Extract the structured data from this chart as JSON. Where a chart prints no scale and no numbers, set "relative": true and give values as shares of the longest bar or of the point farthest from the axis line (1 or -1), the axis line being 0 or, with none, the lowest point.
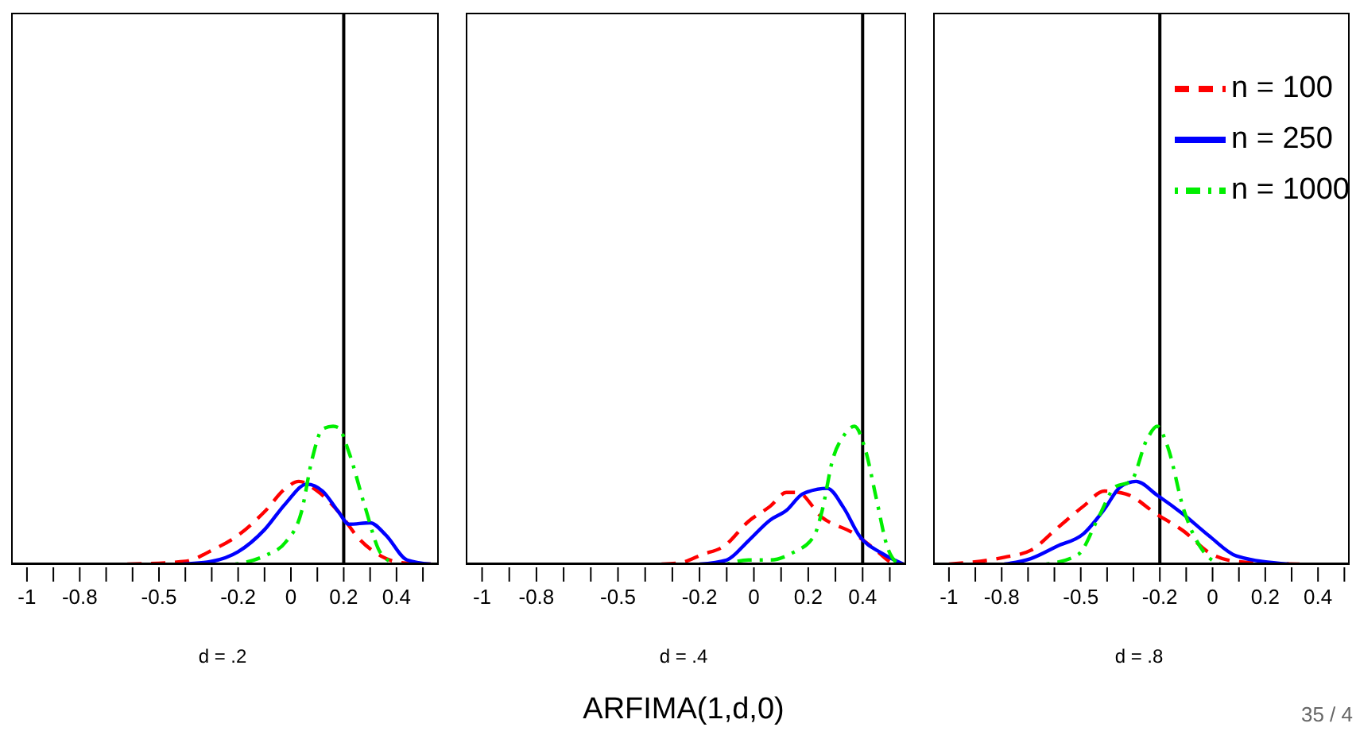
{
  "chart_data": [
    {
      "type": "line",
      "relative": true,
      "xlabel": "d = .2",
      "xlim": [
        -1.06,
        0.56
      ],
      "xticks": [
        -1,
        {
          "value": -0.9,
          "label": null
        },
        -0.8,
        {
          "value": -0.7,
          "label": null
        },
        {
          "value": -0.6,
          "label": null
        },
        -0.5,
        {
          "value": -0.4,
          "label": null
        },
        {
          "value": -0.3,
          "label": null
        },
        -0.2,
        {
          "value": -0.1,
          "label": null
        },
        0,
        {
          "value": 0.1,
          "label": null
        },
        0.2,
        {
          "value": 0.3,
          "label": null
        },
        0.4,
        {
          "value": 0.5,
          "label": null
        }
      ],
      "ref_lines": [
        {
          "axis": "x",
          "value": 0.2,
          "color": "#000000"
        }
      ],
      "series": [
        {
          "color": "#ff0000",
          "line_style": "dashed",
          "x": [
            -0.62,
            -0.4,
            -0.3,
            -0.2,
            -0.1,
            -0.02,
            0.03,
            0.1,
            0.18,
            0.26,
            0.34,
            0.42,
            0.53
          ],
          "values": [
            0,
            0.02,
            0.1,
            0.21,
            0.38,
            0.55,
            0.6,
            0.53,
            0.38,
            0.18,
            0.06,
            0.01,
            0
          ]
        },
        {
          "color": "#0000ff",
          "line_style": "solid",
          "x": [
            -0.41,
            -0.3,
            -0.2,
            -0.1,
            -0.02,
            0.06,
            0.12,
            0.18,
            0.22,
            0.3,
            0.36,
            0.44,
            0.53
          ],
          "values": [
            0,
            0.02,
            0.09,
            0.25,
            0.44,
            0.58,
            0.53,
            0.38,
            0.29,
            0.3,
            0.21,
            0.03,
            0
          ]
        },
        {
          "color": "#00ee00",
          "line_style": "dotted",
          "x": [
            -0.21,
            -0.1,
            -0.02,
            0.04,
            0.08,
            0.12,
            0.16,
            0.18,
            0.22,
            0.28,
            0.34,
            0.4
          ],
          "values": [
            0,
            0.06,
            0.16,
            0.38,
            0.76,
            0.98,
            1,
            0.99,
            0.81,
            0.42,
            0.08,
            0
          ]
        }
      ]
    },
    {
      "type": "line",
      "relative": true,
      "xlabel": "d = .4",
      "xlim": [
        -1.06,
        0.56
      ],
      "xticks": [
        -1,
        {
          "value": -0.9,
          "label": null
        },
        -0.8,
        {
          "value": -0.7,
          "label": null
        },
        {
          "value": -0.6,
          "label": null
        },
        -0.5,
        {
          "value": -0.4,
          "label": null
        },
        {
          "value": -0.3,
          "label": null
        },
        -0.2,
        {
          "value": -0.1,
          "label": null
        },
        0,
        {
          "value": 0.1,
          "label": null
        },
        0.2,
        {
          "value": 0.3,
          "label": null
        },
        0.4,
        {
          "value": 0.5,
          "label": null
        }
      ],
      "ref_lines": [
        {
          "axis": "x",
          "value": 0.4,
          "color": "#000000"
        }
      ],
      "annotations": [
        "ARFIMA(1,d,0)"
      ],
      "series": [
        {
          "color": "#ff0000",
          "line_style": "dashed",
          "x": [
            -0.34,
            -0.27,
            -0.19,
            -0.11,
            -0.02,
            0.06,
            0.12,
            0.16,
            0.25,
            0.37,
            0.45,
            0.51,
            0.55
          ],
          "values": [
            0,
            0.01,
            0.07,
            0.13,
            0.31,
            0.42,
            0.52,
            0.52,
            0.34,
            0.22,
            0.1,
            0.01,
            0
          ]
        },
        {
          "color": "#0000ff",
          "line_style": "solid",
          "x": [
            -0.2,
            -0.1,
            -0.02,
            0.06,
            0.12,
            0.18,
            0.27,
            0.33,
            0.39,
            0.47,
            0.55
          ],
          "values": [
            0,
            0.03,
            0.17,
            0.32,
            0.39,
            0.51,
            0.55,
            0.41,
            0.2,
            0.08,
            0
          ]
        },
        {
          "color": "#00ee00",
          "line_style": "dotted",
          "x": [
            -0.1,
            -0.02,
            0.06,
            0.14,
            0.22,
            0.25,
            0.29,
            0.33,
            0.37,
            0.41,
            0.45,
            0.49,
            0.53
          ],
          "values": [
            0,
            0.03,
            0.03,
            0.08,
            0.2,
            0.38,
            0.76,
            0.93,
            1,
            0.83,
            0.48,
            0.13,
            0
          ]
        }
      ]
    },
    {
      "type": "line",
      "relative": true,
      "xlabel": "d = .8",
      "xlim": [
        -1.06,
        0.52
      ],
      "legend": "top right",
      "xticks": [
        -1,
        {
          "value": -0.9,
          "label": null
        },
        -0.8,
        {
          "value": -0.7,
          "label": null
        },
        {
          "value": -0.6,
          "label": null
        },
        -0.5,
        {
          "value": -0.4,
          "label": null
        },
        {
          "value": -0.3,
          "label": null
        },
        -0.2,
        {
          "value": -0.1,
          "label": null
        },
        0,
        {
          "value": 0.1,
          "label": null
        },
        0.2,
        {
          "value": 0.3,
          "label": null
        },
        0.4,
        {
          "value": 0.5,
          "label": null
        }
      ],
      "ref_lines": [
        {
          "axis": "x",
          "value": -0.2,
          "color": "#000000"
        }
      ],
      "annotations": [
        "35 / 4"
      ],
      "series": [
        {
          "name": "n = 100",
          "color": "#ff0000",
          "line_style": "dashed",
          "x": [
            -1,
            -0.79,
            -0.69,
            -0.59,
            -0.49,
            -0.41,
            -0.33,
            -0.21,
            -0.11,
            -0.01,
            0.09,
            0.33
          ],
          "values": [
            0,
            0.05,
            0.1,
            0.26,
            0.42,
            0.53,
            0.51,
            0.36,
            0.24,
            0.08,
            0.02,
            0
          ]
        },
        {
          "name": "n = 250",
          "color": "#0000ff",
          "line_style": "solid",
          "x": [
            -0.79,
            -0.69,
            -0.59,
            -0.49,
            -0.41,
            -0.35,
            -0.29,
            -0.21,
            -0.11,
            -0.01,
            0.09,
            0.29
          ],
          "values": [
            0,
            0.04,
            0.13,
            0.22,
            0.4,
            0.56,
            0.6,
            0.5,
            0.36,
            0.2,
            0.06,
            0
          ]
        },
        {
          "name": "n = 1000",
          "color": "#00ee00",
          "line_style": "dotted",
          "x": [
            -0.63,
            -0.51,
            -0.43,
            -0.37,
            -0.31,
            -0.25,
            -0.21,
            -0.17,
            -0.11,
            -0.03,
            0.03
          ],
          "values": [
            0,
            0.07,
            0.35,
            0.56,
            0.6,
            0.9,
            1,
            0.85,
            0.4,
            0.08,
            0
          ]
        }
      ]
    }
  ]
}
